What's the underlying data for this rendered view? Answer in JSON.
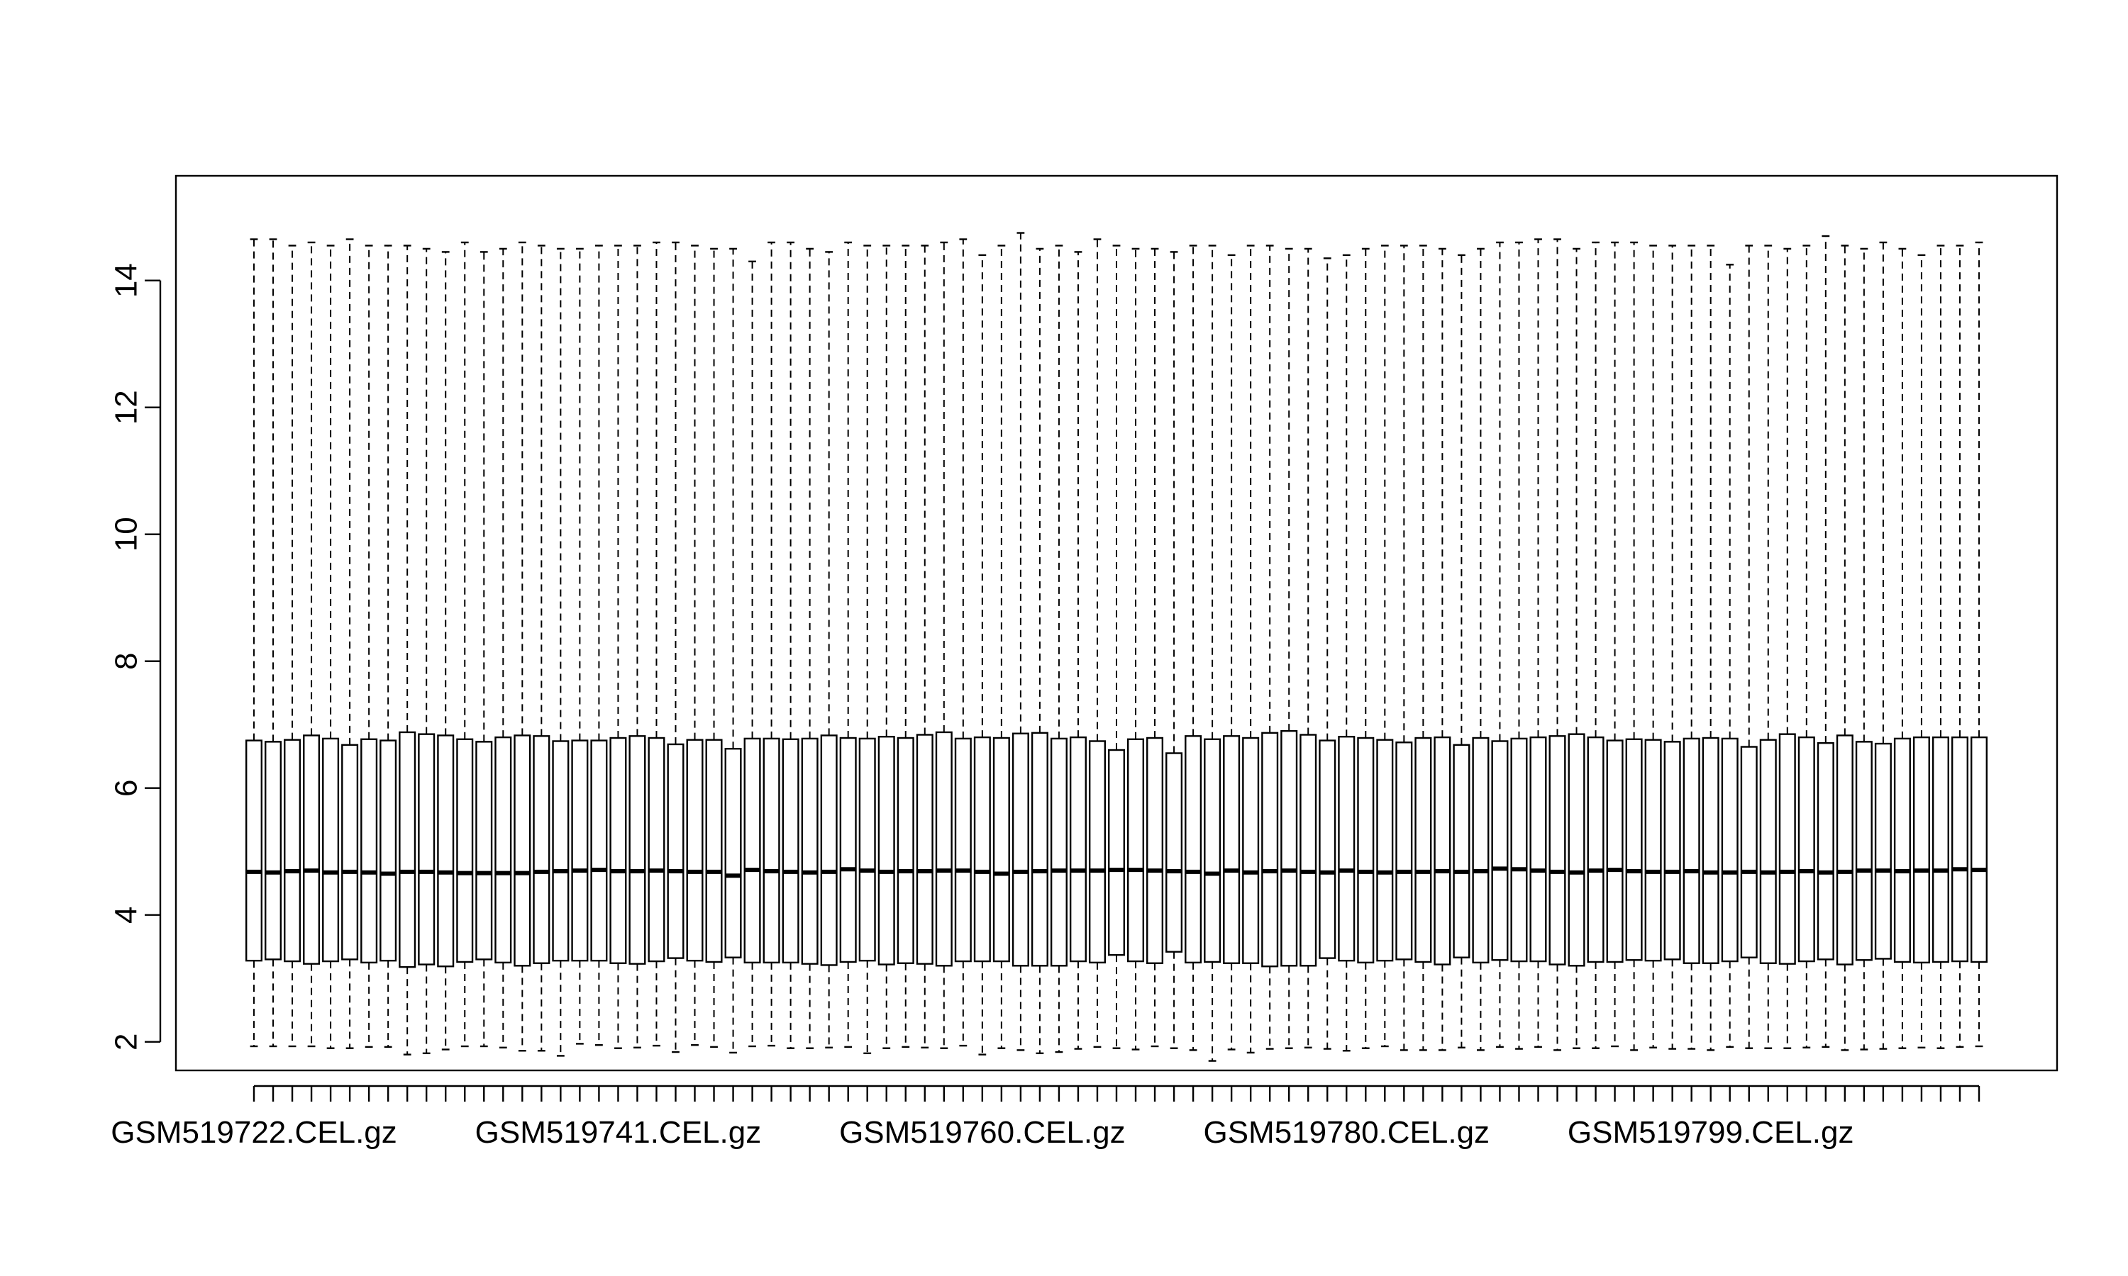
{
  "chart_data": {
    "type": "boxplot",
    "title": "",
    "xlabel": "",
    "ylabel": "",
    "ylim": [
      1.55,
      15.65
    ],
    "y_ticks": [
      2,
      4,
      6,
      8,
      10,
      12,
      14
    ],
    "y_tick_labels": [
      "2",
      "4",
      "6",
      "8",
      "10",
      "12",
      "14"
    ],
    "box_count": 91,
    "x_labels_shown": [
      {
        "index": 0,
        "label": "GSM519722.CEL.gz"
      },
      {
        "index": 19,
        "label": "GSM519741.CEL.gz"
      },
      {
        "index": 38,
        "label": "GSM519760.CEL.gz"
      },
      {
        "index": 57,
        "label": "GSM519780.CEL.gz"
      },
      {
        "index": 76,
        "label": "GSM519799.CEL.gz"
      }
    ],
    "whisker_high": [
      14.65,
      14.65,
      14.55,
      14.6,
      14.55,
      14.65,
      14.55,
      14.55,
      14.55,
      14.5,
      14.45,
      14.6,
      14.45,
      14.5,
      14.6,
      14.55,
      14.5,
      14.5,
      14.55,
      14.55,
      14.55,
      14.6,
      14.6,
      14.55,
      14.5,
      14.5,
      14.3,
      14.6,
      14.6,
      14.5,
      14.45,
      14.6,
      14.55,
      14.55,
      14.55,
      14.55,
      14.6,
      14.65,
      14.4,
      14.55,
      14.75,
      14.5,
      14.55,
      14.45,
      14.65,
      14.55,
      14.5,
      14.5,
      14.45,
      14.55,
      14.55,
      14.4,
      14.55,
      14.55,
      14.5,
      14.5,
      14.35,
      14.4,
      14.5,
      14.55,
      14.55,
      14.55,
      14.5,
      14.4,
      14.5,
      14.6,
      14.6,
      14.65,
      14.65,
      14.5,
      14.6,
      14.6,
      14.6,
      14.55,
      14.55,
      14.55,
      14.55,
      14.25,
      14.55,
      14.55,
      14.5,
      14.55,
      14.7,
      14.55,
      14.5,
      14.6,
      14.5,
      14.4,
      14.55,
      14.55,
      14.6
    ],
    "q3": [
      6.75,
      6.73,
      6.76,
      6.83,
      6.78,
      6.68,
      6.77,
      6.75,
      6.88,
      6.85,
      6.83,
      6.77,
      6.73,
      6.8,
      6.83,
      6.82,
      6.74,
      6.75,
      6.75,
      6.79,
      6.82,
      6.79,
      6.69,
      6.76,
      6.76,
      6.62,
      6.78,
      6.78,
      6.77,
      6.78,
      6.83,
      6.79,
      6.78,
      6.81,
      6.79,
      6.84,
      6.88,
      6.78,
      6.8,
      6.79,
      6.86,
      6.87,
      6.78,
      6.8,
      6.74,
      6.6,
      6.77,
      6.79,
      6.55,
      6.82,
      6.77,
      6.82,
      6.79,
      6.87,
      6.9,
      6.84,
      6.75,
      6.81,
      6.79,
      6.76,
      6.72,
      6.79,
      6.8,
      6.68,
      6.79,
      6.74,
      6.78,
      6.8,
      6.82,
      6.85,
      6.8,
      6.75,
      6.77,
      6.76,
      6.73,
      6.78,
      6.79,
      6.78,
      6.65,
      6.76,
      6.85,
      6.8,
      6.71,
      6.83,
      6.73,
      6.7,
      6.78,
      6.8,
      6.8,
      6.8,
      6.8
    ],
    "median": [
      4.68,
      4.67,
      4.69,
      4.7,
      4.67,
      4.68,
      4.67,
      4.65,
      4.68,
      4.68,
      4.67,
      4.66,
      4.66,
      4.66,
      4.66,
      4.68,
      4.69,
      4.7,
      4.71,
      4.69,
      4.69,
      4.7,
      4.69,
      4.68,
      4.68,
      4.62,
      4.71,
      4.69,
      4.68,
      4.67,
      4.68,
      4.72,
      4.7,
      4.68,
      4.69,
      4.69,
      4.7,
      4.7,
      4.68,
      4.65,
      4.68,
      4.69,
      4.7,
      4.7,
      4.7,
      4.71,
      4.71,
      4.7,
      4.69,
      4.68,
      4.65,
      4.7,
      4.67,
      4.69,
      4.7,
      4.68,
      4.67,
      4.7,
      4.68,
      4.67,
      4.68,
      4.68,
      4.69,
      4.68,
      4.69,
      4.73,
      4.72,
      4.7,
      4.68,
      4.67,
      4.7,
      4.71,
      4.69,
      4.68,
      4.68,
      4.69,
      4.67,
      4.67,
      4.68,
      4.67,
      4.68,
      4.69,
      4.67,
      4.68,
      4.7,
      4.7,
      4.69,
      4.7,
      4.7,
      4.72,
      4.71
    ],
    "q1": [
      3.28,
      3.3,
      3.27,
      3.23,
      3.27,
      3.3,
      3.25,
      3.28,
      3.18,
      3.22,
      3.19,
      3.26,
      3.3,
      3.25,
      3.2,
      3.24,
      3.28,
      3.28,
      3.28,
      3.24,
      3.23,
      3.27,
      3.32,
      3.28,
      3.26,
      3.33,
      3.25,
      3.25,
      3.25,
      3.23,
      3.21,
      3.26,
      3.28,
      3.22,
      3.24,
      3.23,
      3.2,
      3.27,
      3.27,
      3.27,
      3.2,
      3.2,
      3.2,
      3.27,
      3.25,
      3.37,
      3.27,
      3.24,
      3.42,
      3.25,
      3.26,
      3.24,
      3.24,
      3.19,
      3.2,
      3.2,
      3.32,
      3.28,
      3.25,
      3.28,
      3.3,
      3.26,
      3.22,
      3.33,
      3.25,
      3.29,
      3.27,
      3.27,
      3.22,
      3.2,
      3.26,
      3.26,
      3.29,
      3.28,
      3.3,
      3.24,
      3.24,
      3.27,
      3.33,
      3.24,
      3.23,
      3.27,
      3.3,
      3.22,
      3.29,
      3.31,
      3.26,
      3.25,
      3.26,
      3.27,
      3.26
    ],
    "whisker_low": [
      1.93,
      1.93,
      1.93,
      1.93,
      1.9,
      1.9,
      1.92,
      1.92,
      1.8,
      1.82,
      1.88,
      1.93,
      1.93,
      1.91,
      1.86,
      1.86,
      1.78,
      1.97,
      1.95,
      1.9,
      1.91,
      1.94,
      1.84,
      1.95,
      1.92,
      1.83,
      1.93,
      1.94,
      1.9,
      1.9,
      1.91,
      1.92,
      1.82,
      1.9,
      1.92,
      1.91,
      1.9,
      1.94,
      1.8,
      1.9,
      1.87,
      1.82,
      1.84,
      1.89,
      1.92,
      1.9,
      1.88,
      1.93,
      1.9,
      1.87,
      1.7,
      1.88,
      1.83,
      1.89,
      1.9,
      1.91,
      1.89,
      1.86,
      1.9,
      1.93,
      1.87,
      1.87,
      1.87,
      1.91,
      1.87,
      1.92,
      1.89,
      1.92,
      1.87,
      1.9,
      1.9,
      1.93,
      1.87,
      1.91,
      1.89,
      1.89,
      1.87,
      1.92,
      1.9,
      1.9,
      1.9,
      1.91,
      1.92,
      1.87,
      1.88,
      1.89,
      1.9,
      1.91,
      1.9,
      1.92,
      1.93
    ]
  }
}
